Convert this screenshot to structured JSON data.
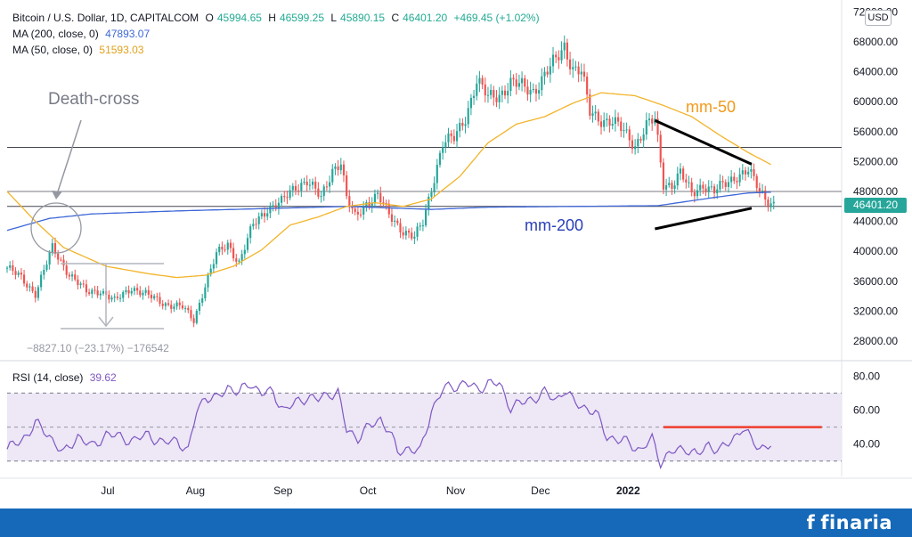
{
  "header": {
    "symbol": "Bitcoin / U.S. Dollar, 1D, CAPITALCOM",
    "open_label": "O",
    "open": "45994.65",
    "high_label": "H",
    "high": "46599.25",
    "low_label": "L",
    "low": "45890.15",
    "close_label": "C",
    "close": "46401.20",
    "change": "+469.45 (+1.02%)",
    "ma200_label": "MA (200, close, 0)",
    "ma200_value": "47893.07",
    "ma50_label": "MA (50, close, 0)",
    "ma50_value": "51593.03",
    "currency": "USD",
    "rsi_label": "RSI (14, close)",
    "rsi_value": "39.62"
  },
  "price_tag": "46401.20",
  "annotations": {
    "death_cross": "Death-cross",
    "mm50": "mm-50",
    "mm200": "mm-200",
    "measure": "−8827.10 (−23.17%) −176542"
  },
  "footer": {
    "brand": "finaria",
    "brand_mark": "f"
  },
  "colors": {
    "up": "#26a69a",
    "down": "#ef5350",
    "ma50": "#f2b42a",
    "ma200": "#3e67d8",
    "rsi": "#7e57c2",
    "rsi_band": "#ede7f6",
    "resistance": "#ef3d2b",
    "footer": "#1669b8"
  },
  "chart_data": [
    {
      "type": "line",
      "title": "Bitcoin / U.S. Dollar, 1D, CAPITALCOM",
      "x": [
        "Jul",
        "Aug",
        "Sep",
        "Oct",
        "Nov",
        "Dec",
        "2022"
      ],
      "yticks": [
        28000,
        32000,
        36000,
        40000,
        44000,
        48000,
        52000,
        56000,
        60000,
        64000,
        68000,
        72000
      ],
      "ylim": [
        25500,
        73000
      ],
      "grid": false,
      "series": [
        {
          "name": "price",
          "points": [
            [
              0,
              37800
            ],
            [
              5,
              36400
            ],
            [
              10,
              34400
            ],
            [
              16,
              40400
            ],
            [
              22,
              37000
            ],
            [
              28,
              34500
            ],
            [
              33,
              34800
            ],
            [
              38,
              33300
            ],
            [
              44,
              35200
            ],
            [
              50,
              34000
            ],
            [
              56,
              33000
            ],
            [
              62,
              32500
            ],
            [
              66,
              30800
            ],
            [
              70,
              35500
            ],
            [
              74,
              39500
            ],
            [
              78,
              41000
            ],
            [
              82,
              38500
            ],
            [
              87,
              43500
            ],
            [
              92,
              45800
            ],
            [
              97,
              46500
            ],
            [
              102,
              48700
            ],
            [
              106,
              49500
            ],
            [
              111,
              47000
            ],
            [
              115,
              51000
            ],
            [
              118,
              52000
            ],
            [
              120,
              47000
            ],
            [
              123,
              44500
            ],
            [
              127,
              46500
            ],
            [
              131,
              47500
            ],
            [
              135,
              44800
            ],
            [
              140,
              42800
            ],
            [
              144,
              41800
            ],
            [
              147,
              43800
            ],
            [
              150,
              48500
            ],
            [
              154,
              54500
            ],
            [
              158,
              55000
            ],
            [
              162,
              58000
            ],
            [
              166,
              62800
            ],
            [
              170,
              60500
            ],
            [
              174,
              61000
            ],
            [
              178,
              62500
            ],
            [
              182,
              62000
            ],
            [
              186,
              61500
            ],
            [
              190,
              63500
            ],
            [
              194,
              65500
            ],
            [
              197,
              67500
            ],
            [
              200,
              64500
            ],
            [
              203,
              64000
            ],
            [
              206,
              58500
            ],
            [
              210,
              57700
            ],
            [
              214,
              57300
            ],
            [
              218,
              56000
            ],
            [
              222,
              54200
            ],
            [
              226,
              56800
            ],
            [
              229,
              57500
            ],
            [
              232,
              49000
            ],
            [
              235,
              49000
            ],
            [
              238,
              50500
            ],
            [
              242,
              47600
            ],
            [
              246,
              49000
            ],
            [
              250,
              48000
            ],
            [
              254,
              49000
            ],
            [
              258,
              50200
            ],
            [
              262,
              50800
            ],
            [
              266,
              48000
            ],
            [
              269,
              46800
            ],
            [
              271,
              46401
            ]
          ]
        },
        {
          "name": "mm-50",
          "points": [
            [
              0,
              48000
            ],
            [
              10,
              44000
            ],
            [
              20,
              40500
            ],
            [
              35,
              38000
            ],
            [
              50,
              37000
            ],
            [
              60,
              36500
            ],
            [
              70,
              36800
            ],
            [
              80,
              38000
            ],
            [
              90,
              40200
            ],
            [
              100,
              43500
            ],
            [
              110,
              44600
            ],
            [
              120,
              46000
            ],
            [
              130,
              46500
            ],
            [
              140,
              46000
            ],
            [
              150,
              47000
            ],
            [
              160,
              50000
            ],
            [
              170,
              54500
            ],
            [
              180,
              57000
            ],
            [
              190,
              58000
            ],
            [
              200,
              59800
            ],
            [
              210,
              61200
            ],
            [
              222,
              60800
            ],
            [
              232,
              59500
            ],
            [
              242,
              58000
            ],
            [
              252,
              55500
            ],
            [
              262,
              53200
            ],
            [
              270,
              51600
            ]
          ]
        },
        {
          "name": "mm-200",
          "points": [
            [
              0,
              42800
            ],
            [
              15,
              44400
            ],
            [
              30,
              45000
            ],
            [
              60,
              45400
            ],
            [
              90,
              45700
            ],
            [
              120,
              46000
            ],
            [
              150,
              45600
            ],
            [
              170,
              45900
            ],
            [
              200,
              46000
            ],
            [
              230,
              46100
            ],
            [
              250,
              47200
            ],
            [
              262,
              47800
            ],
            [
              270,
              47900
            ]
          ]
        }
      ],
      "annotations": [
        "Death-cross",
        "mm-50",
        "mm-200",
        "−8827.10 (−23.17%) −176542"
      ],
      "horizontal_lines": [
        53900,
        48000,
        46000
      ],
      "triangle": {
        "upper": [
          [
            229,
            57500
          ],
          [
            272,
            52000
          ]
        ],
        "lower": [
          [
            229,
            43000
          ],
          [
            272,
            46000
          ]
        ]
      }
    },
    {
      "type": "line",
      "title": "RSI (14, close)",
      "x": [
        "Jul",
        "Aug",
        "Sep",
        "Oct",
        "Nov",
        "Dec",
        "2022"
      ],
      "yticks": [
        40,
        60,
        80
      ],
      "ylim": [
        21,
        88
      ],
      "band": [
        30,
        70
      ],
      "series": [
        {
          "name": "RSI",
          "points": [
            [
              0,
              37
            ],
            [
              5,
              42
            ],
            [
              10,
              52
            ],
            [
              15,
              45
            ],
            [
              20,
              34
            ],
            [
              25,
              45
            ],
            [
              30,
              38
            ],
            [
              35,
              46
            ],
            [
              40,
              44
            ],
            [
              45,
              42
            ],
            [
              50,
              46
            ],
            [
              55,
              40
            ],
            [
              60,
              43
            ],
            [
              64,
              35
            ],
            [
              67,
              60
            ],
            [
              70,
              68
            ],
            [
              74,
              66
            ],
            [
              78,
              74
            ],
            [
              82,
              70
            ],
            [
              86,
              76
            ],
            [
              90,
              70
            ],
            [
              94,
              70
            ],
            [
              98,
              60
            ],
            [
              102,
              64
            ],
            [
              106,
              68
            ],
            [
              110,
              66
            ],
            [
              114,
              70
            ],
            [
              117,
              70
            ],
            [
              120,
              48
            ],
            [
              124,
              44
            ],
            [
              128,
              50
            ],
            [
              132,
              55
            ],
            [
              135,
              48
            ],
            [
              138,
              35
            ],
            [
              142,
              38
            ],
            [
              146,
              35
            ],
            [
              150,
              60
            ],
            [
              154,
              72
            ],
            [
              158,
              74
            ],
            [
              162,
              76
            ],
            [
              166,
              72
            ],
            [
              170,
              76
            ],
            [
              174,
              75
            ],
            [
              178,
              62
            ],
            [
              182,
              64
            ],
            [
              186,
              67
            ],
            [
              190,
              70
            ],
            [
              194,
              66
            ],
            [
              197,
              72
            ],
            [
              200,
              65
            ],
            [
              204,
              62
            ],
            [
              208,
              58
            ],
            [
              212,
              45
            ],
            [
              216,
              42
            ],
            [
              220,
              41
            ],
            [
              224,
              36
            ],
            [
              228,
              43
            ],
            [
              231,
              30
            ],
            [
              235,
              35
            ],
            [
              240,
              38
            ],
            [
              244,
              33
            ],
            [
              248,
              40
            ],
            [
              252,
              36
            ],
            [
              256,
              42
            ],
            [
              260,
              50
            ],
            [
              263,
              42
            ],
            [
              266,
              38
            ],
            [
              270,
              40
            ]
          ]
        }
      ],
      "resistance": 50,
      "annotations": [
        "39.62"
      ]
    }
  ]
}
